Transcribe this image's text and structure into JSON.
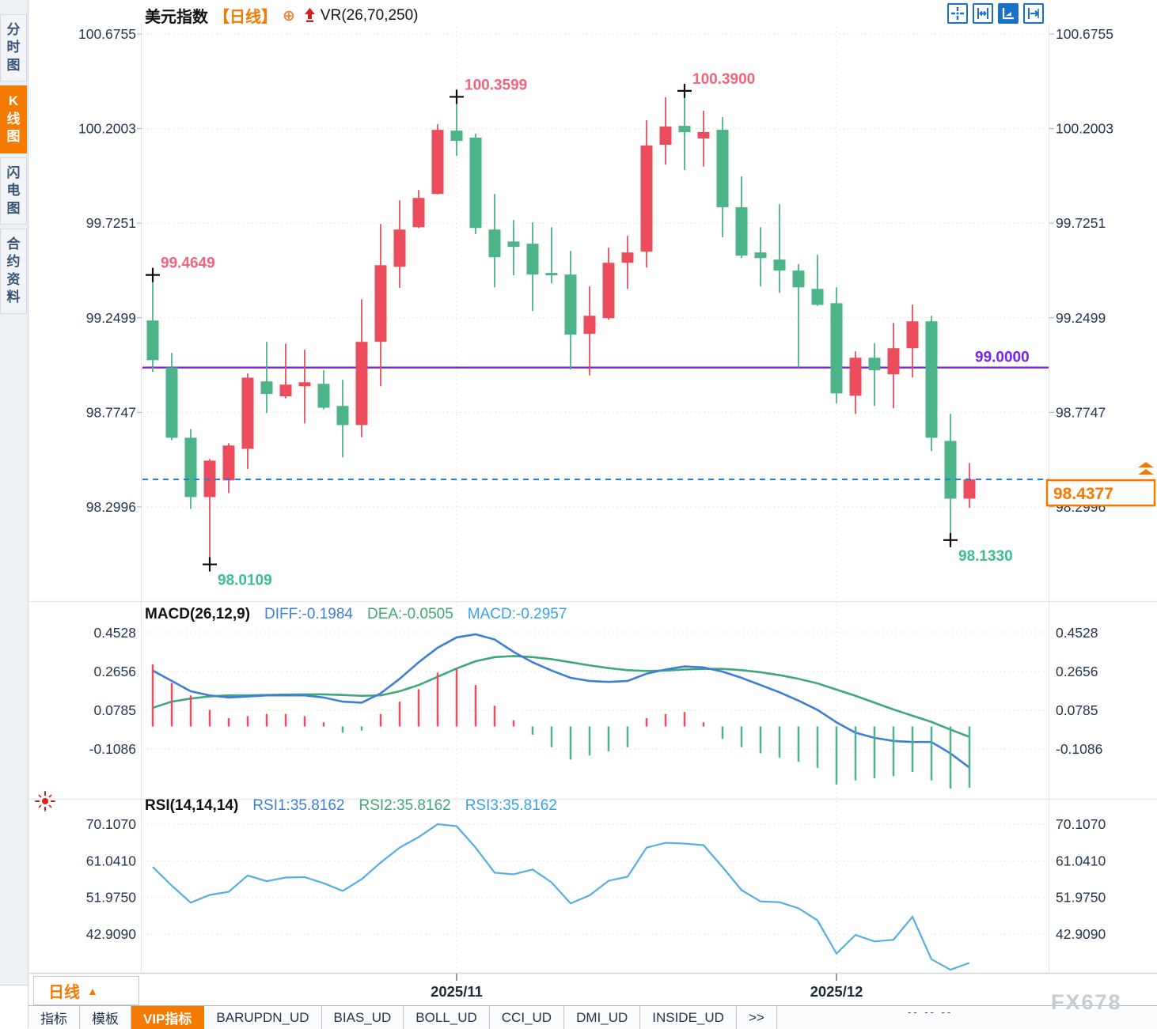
{
  "header": {
    "title": "美元指数",
    "period_tag": "【日线】",
    "overlay_add_icon": "⊕",
    "overlay_label": "VR(26,70,250)"
  },
  "sidebar": {
    "items": [
      {
        "label": "分时图",
        "active": false
      },
      {
        "label": "K线图",
        "active": true
      },
      {
        "label": "闪电图",
        "active": false
      },
      {
        "label": "合约资料",
        "active": false
      }
    ]
  },
  "toolbar": {
    "icons": [
      "crosshair",
      "axis-range",
      "axis-scale-active",
      "pan-to-latest"
    ]
  },
  "colors": {
    "up": "#ec4d5c",
    "down": "#4db389",
    "accent_orange": "#f57a00",
    "purple_line": "#7d20e8",
    "last_price_blue": "#1f7de6",
    "diff_blue": "#3d7fd6",
    "dea_green": "#3fa878",
    "macd_cyan": "#36a3e8",
    "rsi_line": "#54aee3",
    "axis_text": "#24364e",
    "grid": "#dcdfe4",
    "annotation_high": "#f0657c",
    "annotation_low": "#3fbc96"
  },
  "chart_data": {
    "type": "candlestick",
    "price_panel": {
      "y_axis_labels": [
        "100.6755",
        "100.2003",
        "99.7251",
        "99.2499",
        "98.7747",
        "98.2996"
      ],
      "y_axis_values": [
        100.6755,
        100.2003,
        99.7251,
        99.2499,
        98.7747,
        98.2996
      ],
      "support_line": {
        "value": 99.0,
        "label": "99.0000"
      },
      "last_price": {
        "value": 98.4377,
        "label": "98.4377"
      },
      "annotations": [
        {
          "text": "99.4649",
          "value": 99.4649,
          "candle_index": 0,
          "side": "high"
        },
        {
          "text": "100.3599",
          "value": 100.3599,
          "candle_index": 16,
          "side": "high"
        },
        {
          "text": "100.3900",
          "value": 100.39,
          "candle_index": 28,
          "side": "high"
        },
        {
          "text": "98.0109",
          "value": 98.0109,
          "candle_index": 3,
          "side": "low"
        },
        {
          "text": "98.1330",
          "value": 98.133,
          "candle_index": 42,
          "side": "low"
        }
      ],
      "candles_ohlc": [
        [
          99.236,
          99.4649,
          98.978,
          99.037
        ],
        [
          99.0,
          99.073,
          98.635,
          98.647
        ],
        [
          98.647,
          98.69,
          98.29,
          98.349
        ],
        [
          98.349,
          98.54,
          98.0109,
          98.532
        ],
        [
          98.433,
          98.62,
          98.369,
          98.608
        ],
        [
          98.591,
          98.97,
          98.49,
          98.949
        ],
        [
          98.93,
          99.129,
          98.771,
          98.867
        ],
        [
          98.855,
          99.12,
          98.845,
          98.914
        ],
        [
          98.906,
          99.089,
          98.719,
          98.926
        ],
        [
          98.918,
          98.986,
          98.79,
          98.798
        ],
        [
          98.807,
          98.938,
          98.548,
          98.711
        ],
        [
          98.711,
          99.343,
          98.65,
          99.129
        ],
        [
          99.129,
          99.721,
          98.906,
          99.514
        ],
        [
          99.506,
          99.84,
          99.4,
          99.693
        ],
        [
          99.705,
          99.892,
          99.7,
          99.852
        ],
        [
          99.872,
          100.222,
          99.87,
          100.194
        ],
        [
          100.19,
          100.3599,
          100.063,
          100.139
        ],
        [
          100.155,
          100.175,
          99.67,
          99.701
        ],
        [
          99.693,
          99.872,
          99.403,
          99.554
        ],
        [
          99.633,
          99.741,
          99.463,
          99.606
        ],
        [
          99.622,
          99.729,
          99.284,
          99.467
        ],
        [
          99.475,
          99.705,
          99.423,
          99.463
        ],
        [
          99.467,
          99.586,
          98.99,
          99.165
        ],
        [
          99.169,
          99.407,
          98.96,
          99.26
        ],
        [
          99.248,
          99.602,
          99.24,
          99.526
        ],
        [
          99.526,
          99.661,
          99.395,
          99.578
        ],
        [
          99.582,
          100.242,
          99.502,
          100.115
        ],
        [
          100.119,
          100.358,
          100.019,
          100.211
        ],
        [
          100.214,
          100.39,
          99.992,
          100.182
        ],
        [
          100.151,
          100.29,
          100.01,
          100.183
        ],
        [
          100.194,
          100.258,
          99.654,
          99.805
        ],
        [
          99.805,
          99.96,
          99.55,
          99.562
        ],
        [
          99.578,
          99.705,
          99.407,
          99.55
        ],
        [
          99.542,
          99.821,
          99.375,
          99.487
        ],
        [
          99.487,
          99.52,
          99.0,
          99.403
        ],
        [
          99.395,
          99.566,
          99.31,
          99.315
        ],
        [
          99.323,
          99.403,
          98.82,
          98.87
        ],
        [
          98.858,
          99.081,
          98.767,
          99.049
        ],
        [
          99.049,
          99.121,
          98.807,
          98.986
        ],
        [
          98.966,
          99.224,
          98.795,
          99.097
        ],
        [
          99.097,
          99.316,
          98.95,
          99.232
        ],
        [
          99.232,
          99.26,
          98.58,
          98.647
        ],
        [
          98.631,
          98.767,
          98.133,
          98.341
        ],
        [
          98.341,
          98.52,
          98.294,
          98.4377
        ]
      ]
    },
    "macd_panel": {
      "title": "MACD(26,12,9)",
      "diff_label": "DIFF:-0.1984",
      "dea_label": "DEA:-0.0505",
      "macd_label": "MACD:-0.2957",
      "y_axis_labels": [
        "0.4528",
        "0.2656",
        "0.0785",
        "-0.1086"
      ],
      "y_axis_values": [
        0.4528,
        0.2656,
        0.0785,
        -0.1086
      ],
      "diff": [
        0.27,
        0.22,
        0.17,
        0.15,
        0.14,
        0.145,
        0.15,
        0.15,
        0.15,
        0.14,
        0.12,
        0.115,
        0.16,
        0.23,
        0.31,
        0.38,
        0.43,
        0.445,
        0.42,
        0.36,
        0.31,
        0.27,
        0.235,
        0.22,
        0.215,
        0.22,
        0.255,
        0.275,
        0.29,
        0.285,
        0.265,
        0.235,
        0.2,
        0.165,
        0.125,
        0.08,
        0.02,
        -0.03,
        -0.055,
        -0.07,
        -0.075,
        -0.075,
        -0.13,
        -0.1984
      ],
      "dea": [
        0.09,
        0.12,
        0.135,
        0.145,
        0.15,
        0.15,
        0.152,
        0.154,
        0.155,
        0.155,
        0.152,
        0.148,
        0.15,
        0.17,
        0.2,
        0.24,
        0.28,
        0.315,
        0.335,
        0.34,
        0.335,
        0.325,
        0.31,
        0.295,
        0.282,
        0.272,
        0.268,
        0.27,
        0.275,
        0.278,
        0.278,
        0.272,
        0.262,
        0.248,
        0.23,
        0.208,
        0.178,
        0.148,
        0.115,
        0.082,
        0.052,
        0.022,
        -0.015,
        -0.0505
      ],
      "hist": [
        0.3,
        0.21,
        0.15,
        0.08,
        0.04,
        0.05,
        0.06,
        0.06,
        0.05,
        0.02,
        -0.03,
        -0.02,
        0.06,
        0.12,
        0.18,
        0.26,
        0.28,
        0.2,
        0.1,
        0.03,
        -0.04,
        -0.1,
        -0.16,
        -0.14,
        -0.12,
        -0.1,
        0.04,
        0.06,
        0.07,
        0.02,
        -0.06,
        -0.1,
        -0.13,
        -0.15,
        -0.17,
        -0.2,
        -0.28,
        -0.26,
        -0.25,
        -0.24,
        -0.22,
        -0.26,
        -0.3,
        -0.2957
      ]
    },
    "rsi_panel": {
      "title": "RSI(14,14,14)",
      "rsi1_label": "RSI1:35.8162",
      "rsi2_label": "RSI2:35.8162",
      "rsi3_label": "RSI3:35.8162",
      "y_axis_labels": [
        "70.1070",
        "61.0410",
        "51.9750",
        "42.9090"
      ],
      "y_axis_values": [
        70.107,
        61.041,
        51.975,
        42.909
      ],
      "values": [
        59.5,
        54.9,
        50.7,
        52.6,
        53.4,
        57.4,
        56.0,
        56.9,
        57.0,
        55.5,
        53.6,
        56.5,
        60.6,
        64.3,
        66.9,
        70.1,
        69.6,
        64.3,
        58.1,
        57.7,
        58.9,
        55.7,
        50.5,
        52.5,
        56.1,
        57.1,
        64.3,
        65.5,
        65.3,
        64.9,
        59.5,
        53.8,
        51.0,
        50.8,
        49.3,
        46.3,
        38.1,
        42.7,
        41.1,
        41.5,
        47.2,
        36.7,
        34.1,
        35.8
      ]
    },
    "x_axis": {
      "labels": [
        {
          "text": "2025/11",
          "candle_index": 16
        },
        {
          "text": "2025/12",
          "candle_index": 36
        }
      ]
    }
  },
  "bottom": {
    "period_label": "日线",
    "period_arrow": "▲",
    "tabs": [
      {
        "label": "指标",
        "active": false
      },
      {
        "label": "模板",
        "active": false
      },
      {
        "label": "VIP指标",
        "active": true
      },
      {
        "label": "BARUPDN_UD",
        "active": false
      },
      {
        "label": "BIAS_UD",
        "active": false
      },
      {
        "label": "BOLL_UD",
        "active": false
      },
      {
        "label": "CCI_UD",
        "active": false
      },
      {
        "label": "DMI_UD",
        "active": false
      },
      {
        "label": "INSIDE_UD",
        "active": false
      },
      {
        "label": ">>",
        "active": false
      }
    ],
    "marks": "-- -- --",
    "watermark": "FX678"
  }
}
